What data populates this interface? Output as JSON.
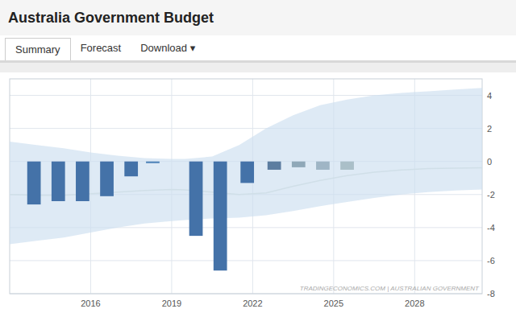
{
  "chart_data": {
    "type": "bar",
    "title": "Australia Government Budget",
    "annotations": [
      "Summary",
      "Forecast",
      "Download ▾",
      "TRADINGECONOMICS.COM | AUSTRALIAN GOVERNMENT"
    ],
    "series": [
      {
        "type": "bar",
        "x": [
          2013.9,
          2014.8,
          2015.7,
          2016.6,
          2017.5,
          2018.3,
          2019.9,
          2020.8,
          2021.8,
          2022.8,
          2023.7,
          2024.6,
          2025.5
        ],
        "values": [
          -2.6,
          -2.4,
          -2.4,
          -2.1,
          -0.9,
          -0.1,
          -4.5,
          -6.6,
          -1.3,
          -0.5,
          -0.35,
          -0.5,
          -0.5
        ],
        "colors": [
          "#4472a8",
          "#4472a8",
          "#4472a8",
          "#4472a8",
          "#4472a8",
          "#4d82b8",
          "#4472a8",
          "#4472a8",
          "#4472a8",
          "#5c7da0",
          "#8fa8b8",
          "#9fb5c5",
          "#aabfc8"
        ]
      },
      {
        "type": "area",
        "x": [
          2013.0,
          2014.0,
          2015.0,
          2016.0,
          2017.0,
          2018.0,
          2019.0,
          2019.5,
          2020.5,
          2021.5,
          2022.5,
          2023.5,
          2024.5,
          2025.5,
          2026.5,
          2027.5,
          2028.5,
          2029.5,
          2030.5
        ],
        "upper": [
          1.2,
          1.0,
          0.8,
          0.55,
          0.35,
          0.2,
          0.15,
          0.15,
          0.3,
          1.0,
          2.0,
          2.8,
          3.4,
          3.75,
          4.0,
          4.15,
          4.25,
          4.35,
          4.45
        ],
        "lower": [
          -5.0,
          -4.8,
          -4.6,
          -4.3,
          -4.0,
          -3.75,
          -3.6,
          -3.55,
          -3.45,
          -3.4,
          -3.25,
          -3.0,
          -2.7,
          -2.45,
          -2.2,
          -2.0,
          -1.85,
          -1.75,
          -1.7
        ],
        "color": "#ccdff0"
      },
      {
        "type": "line",
        "x": [
          2013.0,
          2014.0,
          2015.0,
          2016.0,
          2017.0,
          2018.0,
          2019.0,
          2019.5,
          2020.5,
          2021.5,
          2022.5,
          2023.5,
          2024.5,
          2025.5,
          2026.5,
          2027.5,
          2028.5,
          2029.5,
          2030.5
        ],
        "values": [
          -2.0,
          -2.05,
          -2.05,
          -1.95,
          -1.85,
          -1.75,
          -1.7,
          -1.72,
          -1.85,
          -2.0,
          -1.9,
          -1.5,
          -1.15,
          -0.85,
          -0.65,
          -0.52,
          -0.43,
          -0.4,
          -0.38
        ],
        "color": "#d0dfe8"
      }
    ],
    "xlim": [
      2013.0,
      2030.5
    ],
    "xticks": [
      2016,
      2019,
      2022,
      2025,
      2028
    ],
    "ylim": [
      -8,
      5
    ],
    "yticks": [
      -8,
      -6,
      -4,
      -2,
      0,
      2,
      4
    ],
    "grid": true
  }
}
